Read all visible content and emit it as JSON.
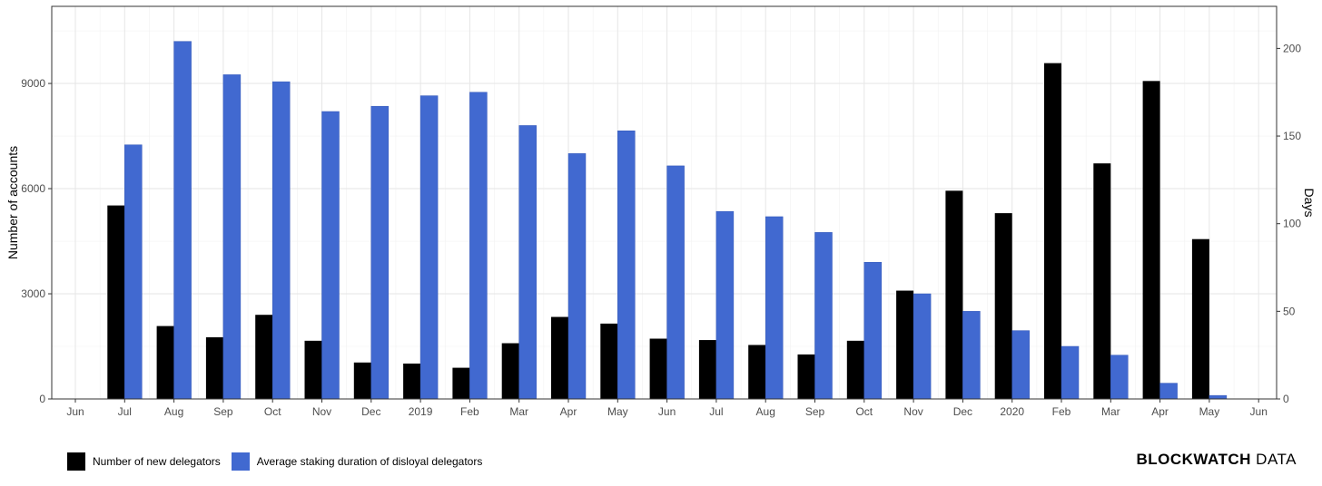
{
  "chart_data": {
    "type": "bar",
    "categories": [
      "Jun",
      "Jul",
      "Aug",
      "Sep",
      "Oct",
      "Nov",
      "Dec",
      "2019",
      "Feb",
      "Mar",
      "Apr",
      "May",
      "Jun",
      "Jul",
      "Aug",
      "Sep",
      "Oct",
      "Nov",
      "Dec",
      "2020",
      "Feb",
      "Mar",
      "Apr",
      "May",
      "Jun"
    ],
    "series": [
      {
        "name": "Number of new delegators",
        "axis": "left",
        "color": "#000000",
        "values": [
          0,
          5520,
          2080,
          1760,
          2400,
          1660,
          1040,
          1010,
          890,
          1590,
          2340,
          2150,
          1720,
          1680,
          1540,
          1270,
          1660,
          3090,
          5940,
          5300,
          9580,
          6720,
          9070,
          4560,
          0
        ]
      },
      {
        "name": "Average staking duration of disloyal delegators",
        "axis": "right",
        "color": "#4169d0",
        "values": [
          0,
          145,
          204,
          185,
          181,
          164,
          167,
          173,
          175,
          156,
          140,
          153,
          133,
          107,
          104,
          95,
          78,
          60,
          50,
          39,
          30,
          25,
          9,
          2,
          0
        ]
      }
    ],
    "ylabel": "Number of accounts",
    "y2label": "Days",
    "ylim": [
      0,
      11200
    ],
    "y2lim": [
      0,
      224
    ],
    "yticks": [
      0,
      3000,
      6000,
      9000
    ],
    "y2ticks": [
      0,
      50,
      100,
      150,
      200
    ],
    "grid": true,
    "legend_position": "bottom-left"
  },
  "legend": {
    "items": [
      {
        "label": "Number of new delegators",
        "color": "#000000"
      },
      {
        "label": "Average staking duration of disloyal delegators",
        "color": "#4169d0"
      }
    ]
  },
  "brand": {
    "part1": "BLOCKWATCH",
    "part2": " DATA"
  }
}
